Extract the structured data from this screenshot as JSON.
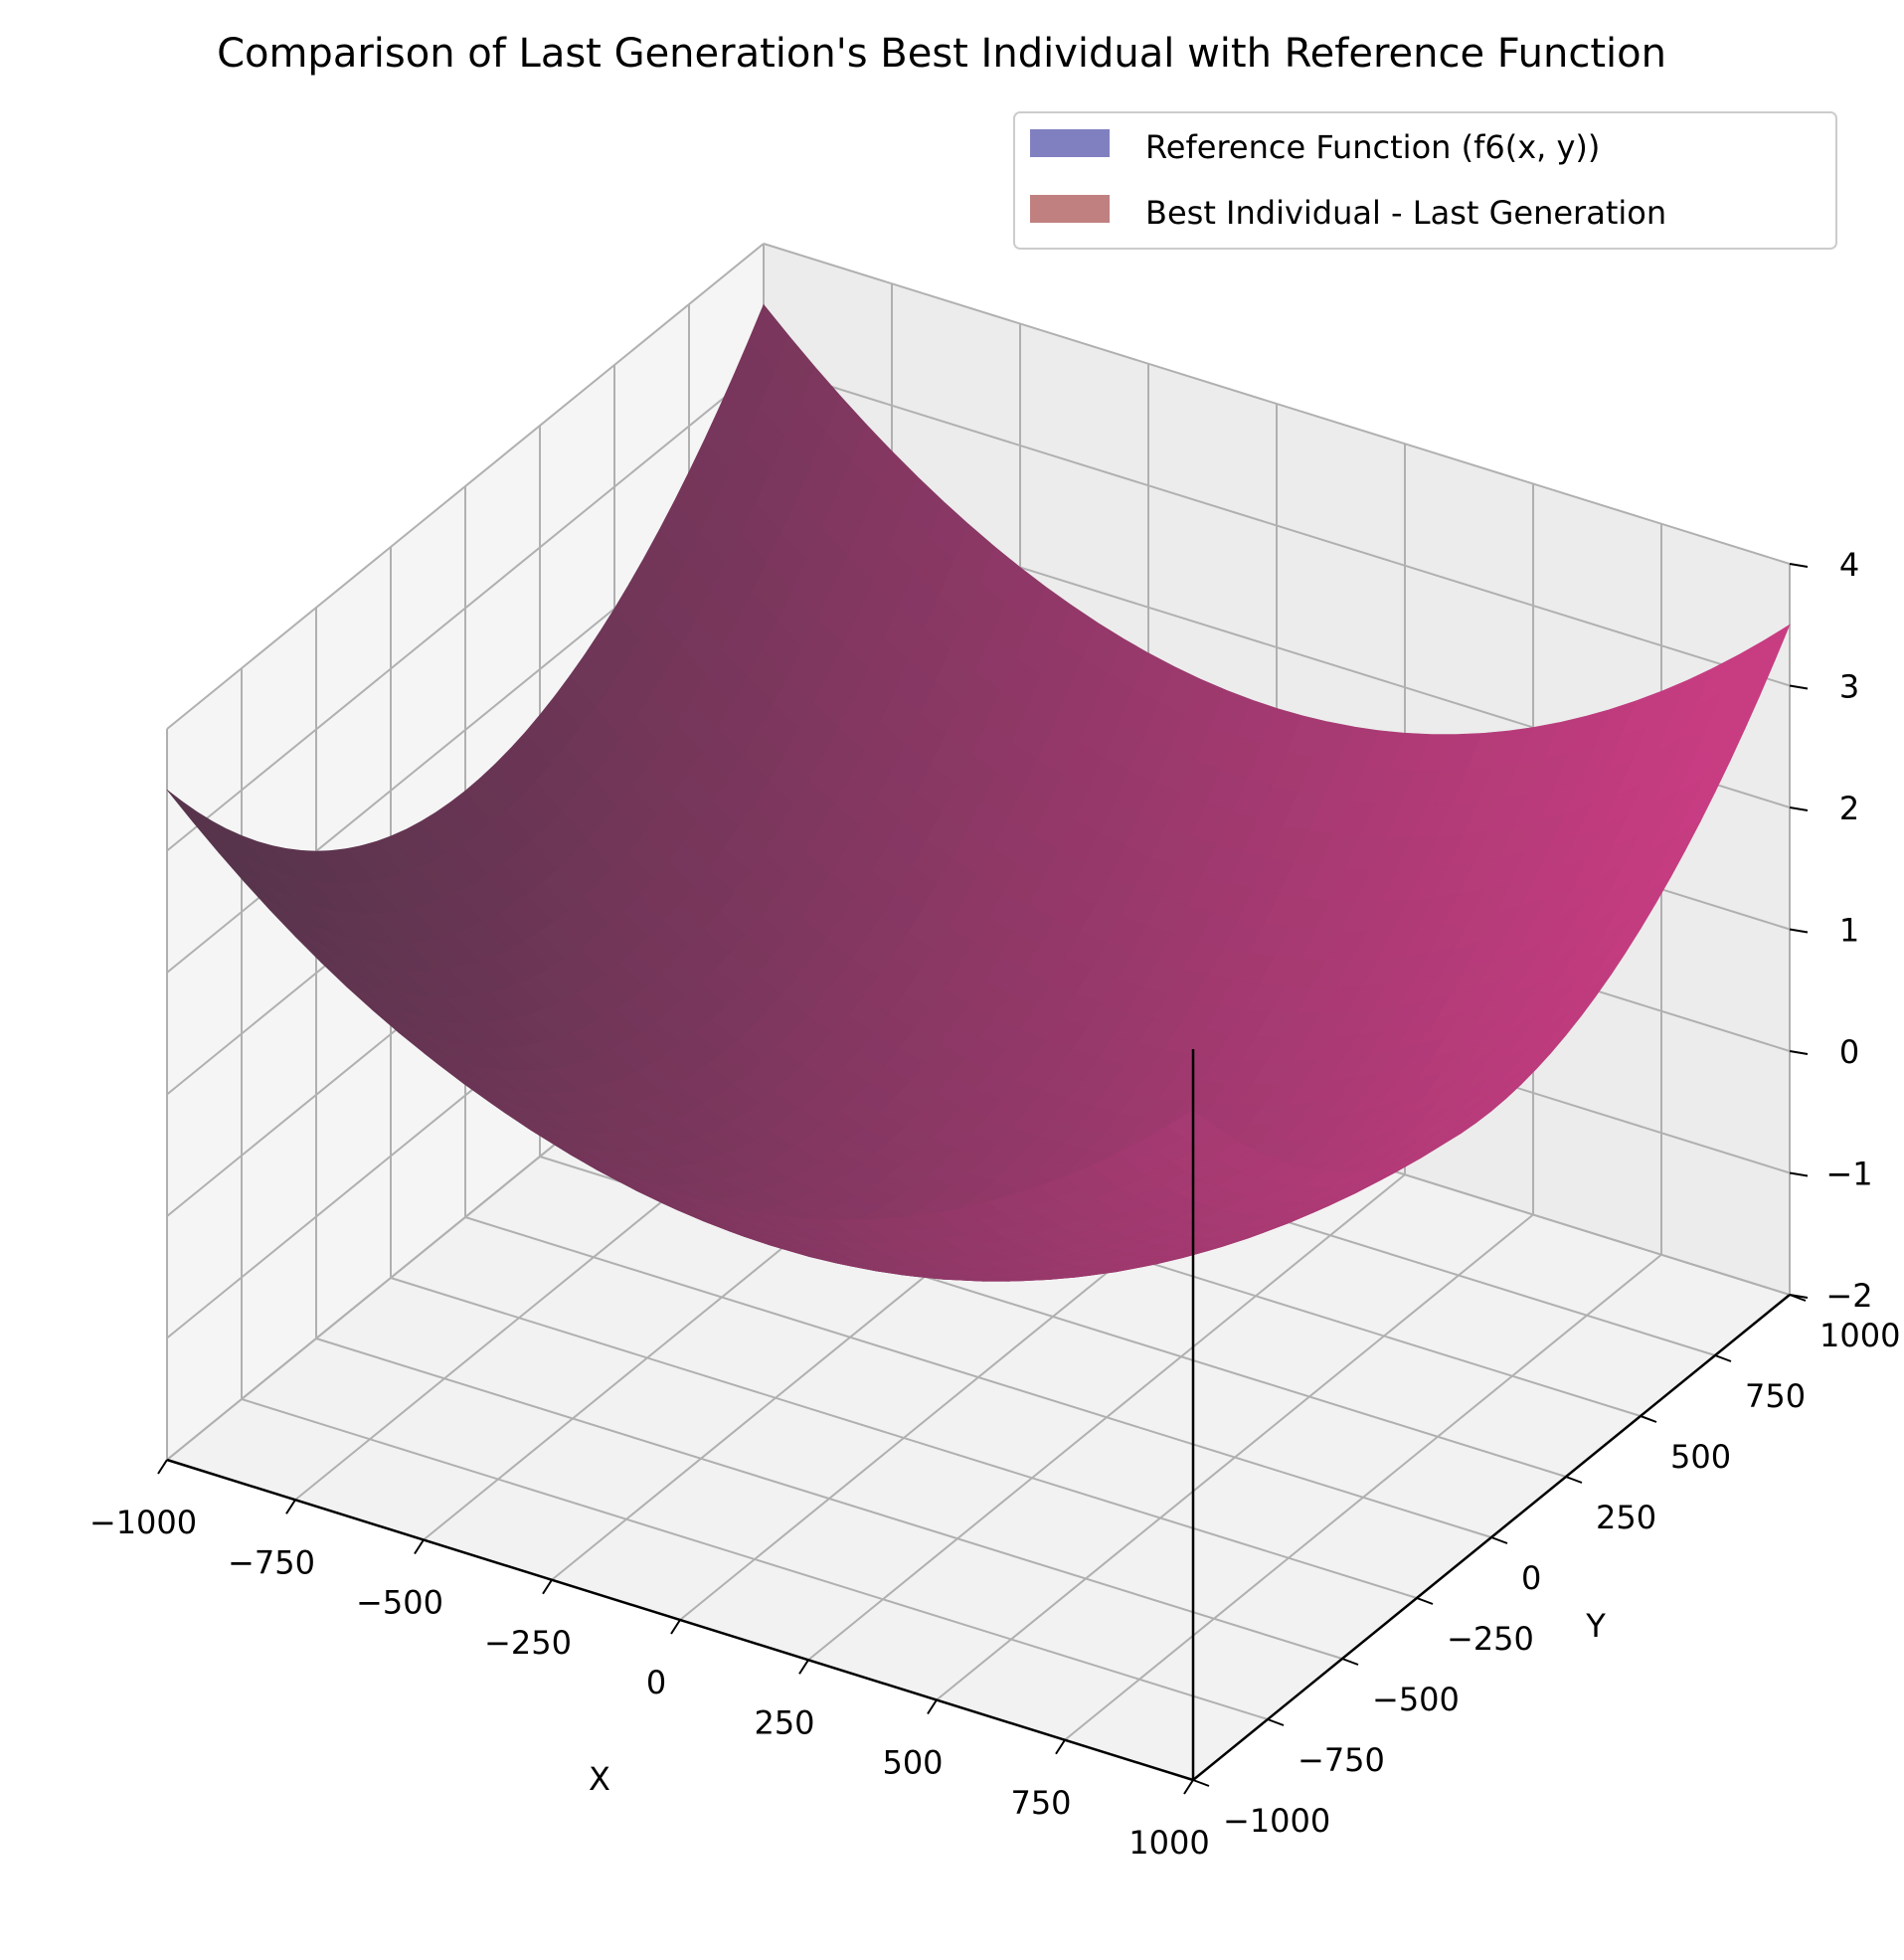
{
  "chart_data": {
    "type": "surface3d",
    "title": "Comparison of Last Generation's Best Individual with Reference Function",
    "xlabel": "X",
    "ylabel": "Y",
    "zlabel": "",
    "xlim": [
      -1000,
      1000
    ],
    "ylim": [
      -1000,
      1000
    ],
    "zlim": [
      -2,
      4
    ],
    "x_ticks": [
      "−1000",
      "−750",
      "−500",
      "−250",
      "0",
      "250",
      "500",
      "750",
      "1000"
    ],
    "y_ticks": [
      "−1000",
      "−750",
      "−500",
      "−250",
      "0",
      "250",
      "500",
      "750",
      "1000"
    ],
    "z_ticks": [
      "−2",
      "−1",
      "0",
      "1",
      "2",
      "3",
      "4"
    ],
    "grid": true,
    "legend_position": "top-right",
    "series": [
      {
        "name": "Reference Function (f6(x, y))",
        "color": "#8080c0",
        "function": "(x^2 + y^2) / 500000 - 0.5",
        "corner_values": {
          "x=-1000,y=-1000": 3.5,
          "x=1000,y=1000": 3.5,
          "x=-1000,y=1000": 3.5,
          "x=1000,y=-1000": 3.5
        },
        "min_value": -0.5
      },
      {
        "name": "Best Individual - Last Generation",
        "color": "#c08080",
        "function": "(x^2 + y^2) / 500000 - 0.5",
        "corner_values": {
          "x=-1000,y=-1000": 3.5,
          "x=1000,y=1000": 3.5,
          "x=-1000,y=1000": 3.5,
          "x=1000,y=-1000": 3.5
        },
        "min_value": -0.5
      }
    ]
  }
}
